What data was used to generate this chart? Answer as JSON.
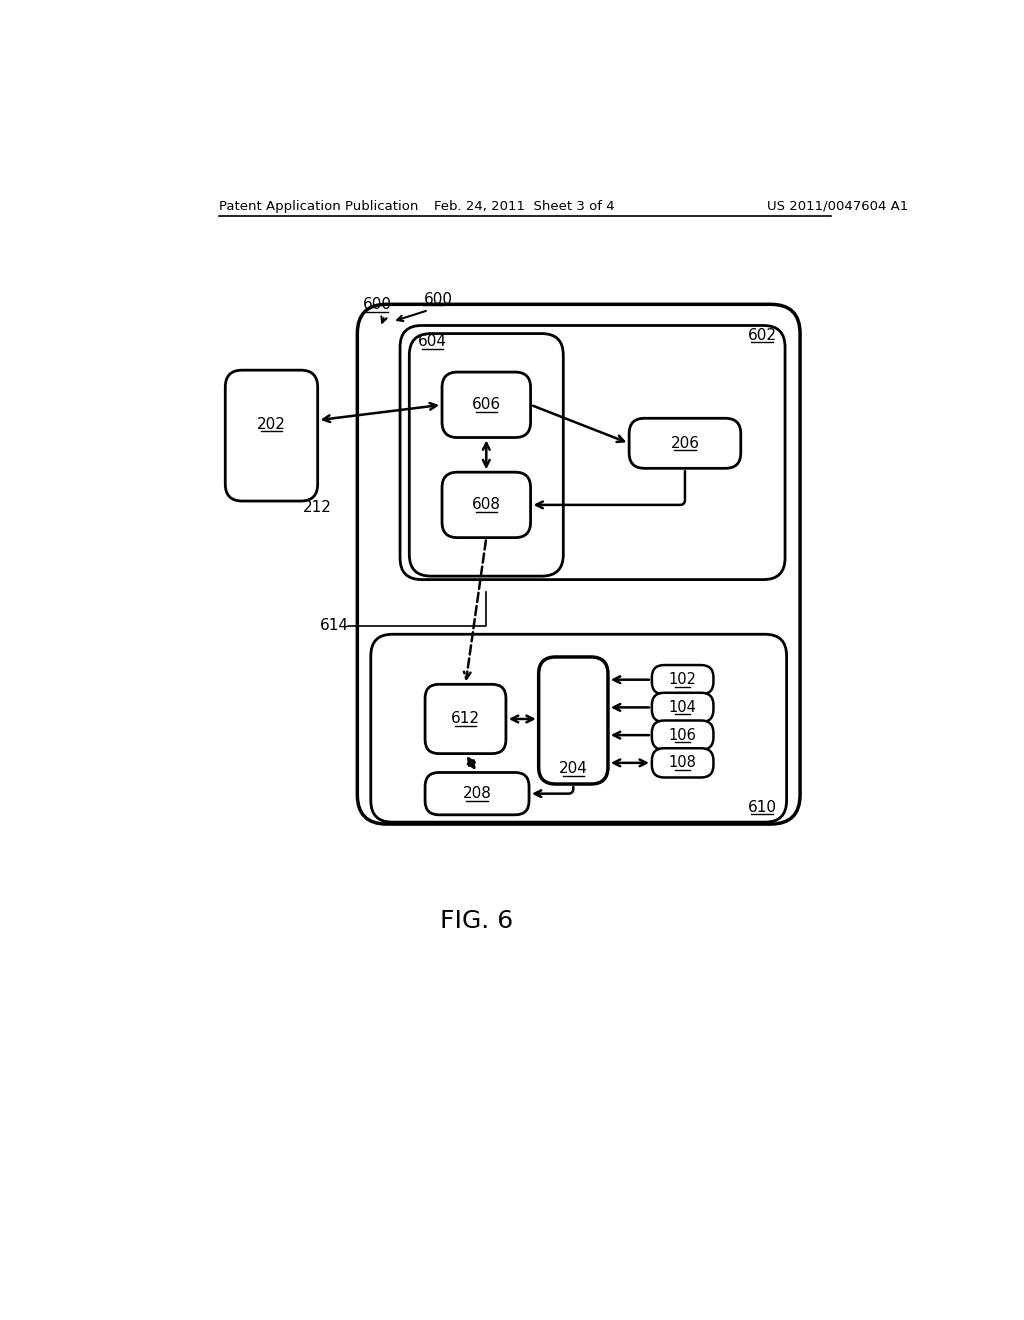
{
  "title_left": "Patent Application Publication",
  "title_mid": "Feb. 24, 2011  Sheet 3 of 4",
  "title_right": "US 2011/0047604 A1",
  "fig_label": "FIG. 6",
  "background": "#ffffff",
  "line_color": "#000000"
}
